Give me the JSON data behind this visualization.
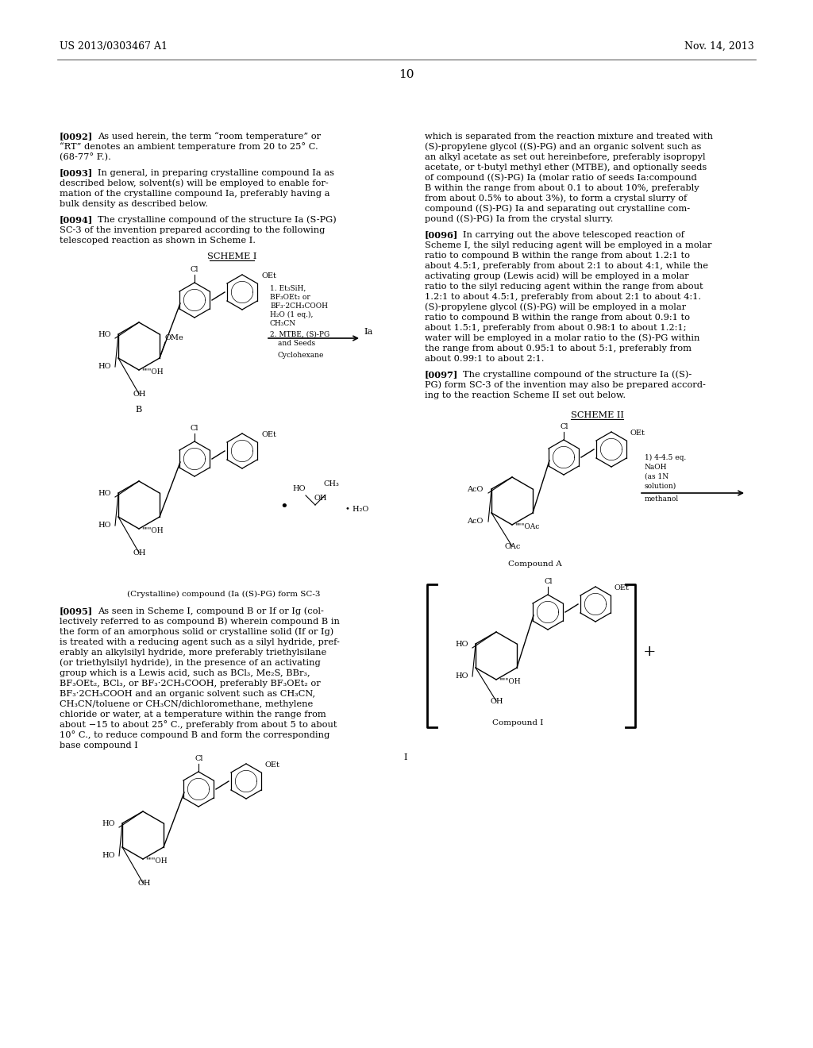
{
  "page_header_left": "US 2013/0303467 A1",
  "page_header_right": "Nov. 14, 2013",
  "page_number": "10",
  "background_color": "#ffffff",
  "text_color": "#000000",
  "font_size_body": 8.2,
  "font_size_header": 9.0,
  "font_size_page_num": 11.0
}
